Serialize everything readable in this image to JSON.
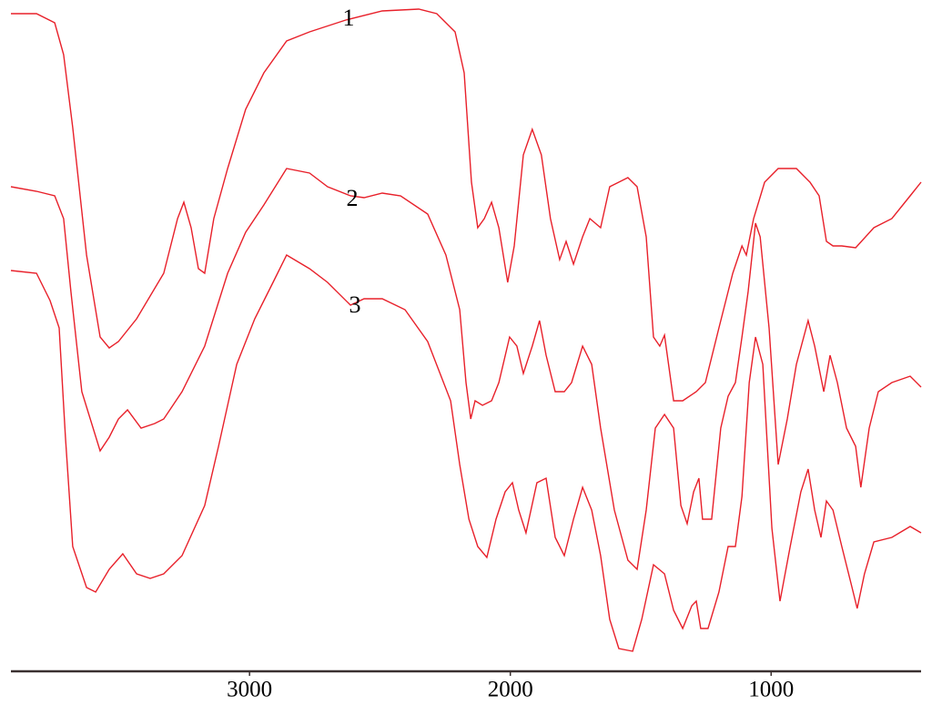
{
  "chart_data": {
    "type": "line",
    "xlim": [
      3915,
      425
    ],
    "ylim": [
      0,
      732
    ],
    "xticks": [
      3000,
      2000,
      1000
    ],
    "grid": false,
    "series": [
      {
        "name": "1",
        "color": "#e8202a",
        "x": [
          3915,
          3817,
          3747,
          3713,
          3678,
          3625,
          3573,
          3538,
          3503,
          3433,
          3329,
          3276,
          3252,
          3224,
          3196,
          3172,
          3137,
          3084,
          3015,
          2945,
          2858,
          2770,
          2631,
          2491,
          2351,
          2282,
          2212,
          2177,
          2149,
          2125,
          2100,
          2072,
          2044,
          2010,
          1985,
          1950,
          1916,
          1881,
          1846,
          1811,
          1786,
          1758,
          1723,
          1695,
          1654,
          1619,
          1584,
          1549,
          1514,
          1479,
          1451,
          1427,
          1409,
          1374,
          1339,
          1287,
          1252,
          1200,
          1147,
          1112,
          1095,
          1067,
          1025,
          973,
          903,
          851,
          816,
          788,
          763,
          729,
          676,
          606,
          537,
          467,
          425
        ],
        "values": [
          722,
          722,
          712,
          677,
          597,
          457,
          367,
          355,
          362,
          387,
          437,
          497,
          515,
          487,
          442,
          437,
          497,
          552,
          617,
          657,
          692,
          702,
          715,
          725,
          727,
          722,
          702,
          657,
          537,
          487,
          497,
          515,
          487,
          427,
          467,
          567,
          595,
          567,
          497,
          452,
          472,
          447,
          477,
          497,
          487,
          532,
          537,
          542,
          532,
          477,
          367,
          357,
          369,
          297,
          297,
          307,
          317,
          377,
          437,
          467,
          457,
          497,
          537,
          552,
          552,
          537,
          522,
          472,
          467,
          467,
          465,
          487,
          497,
          522,
          537
        ]
      },
      {
        "name": "2",
        "color": "#e8202a",
        "x": [
          3915,
          3817,
          3747,
          3713,
          3685,
          3643,
          3573,
          3538,
          3503,
          3468,
          3416,
          3364,
          3329,
          3259,
          3172,
          3084,
          3015,
          2945,
          2858,
          2770,
          2701,
          2613,
          2561,
          2491,
          2421,
          2317,
          2247,
          2194,
          2170,
          2152,
          2135,
          2107,
          2072,
          2044,
          2003,
          1975,
          1950,
          1916,
          1888,
          1863,
          1828,
          1793,
          1765,
          1723,
          1688,
          1654,
          1601,
          1549,
          1514,
          1479,
          1444,
          1409,
          1374,
          1346,
          1322,
          1297,
          1277,
          1263,
          1228,
          1193,
          1165,
          1137,
          1112,
          1088,
          1060,
          1042,
          1008,
          973,
          938,
          903,
          858,
          833,
          798,
          774,
          746,
          711,
          676,
          656,
          624,
          589,
          537,
          467,
          425
        ],
        "values": [
          532,
          527,
          522,
          497,
          417,
          307,
          242,
          257,
          277,
          287,
          267,
          272,
          277,
          307,
          357,
          437,
          482,
          512,
          552,
          547,
          532,
          522,
          520,
          525,
          522,
          502,
          457,
          397,
          317,
          277,
          297,
          292,
          297,
          317,
          367,
          357,
          327,
          357,
          385,
          347,
          307,
          307,
          317,
          357,
          337,
          267,
          177,
          122,
          112,
          177,
          267,
          282,
          267,
          182,
          162,
          197,
          212,
          167,
          167,
          267,
          302,
          317,
          367,
          417,
          492,
          477,
          377,
          227,
          277,
          337,
          385,
          357,
          307,
          347,
          317,
          267,
          247,
          202,
          267,
          307,
          317,
          324,
          312
        ]
      },
      {
        "name": "3",
        "color": "#e8202a",
        "x": [
          3915,
          3817,
          3765,
          3730,
          3706,
          3678,
          3625,
          3590,
          3538,
          3486,
          3433,
          3381,
          3329,
          3259,
          3172,
          3119,
          3049,
          2980,
          2910,
          2858,
          2770,
          2701,
          2613,
          2561,
          2491,
          2404,
          2317,
          2229,
          2194,
          2159,
          2125,
          2090,
          2055,
          2020,
          1992,
          1968,
          1940,
          1898,
          1863,
          1828,
          1793,
          1758,
          1723,
          1688,
          1654,
          1619,
          1584,
          1531,
          1496,
          1451,
          1409,
          1374,
          1339,
          1304,
          1287,
          1270,
          1242,
          1200,
          1165,
          1137,
          1112,
          1084,
          1060,
          1032,
          997,
          966,
          927,
          886,
          858,
          833,
          809,
          788,
          763,
          729,
          694,
          670,
          642,
          606,
          537,
          467,
          425
        ],
        "values": [
          440,
          437,
          407,
          377,
          257,
          137,
          92,
          87,
          112,
          129,
          107,
          102,
          107,
          127,
          182,
          247,
          337,
          387,
          427,
          457,
          442,
          427,
          402,
          409,
          409,
          397,
          362,
          297,
          227,
          167,
          137,
          125,
          167,
          197,
          207,
          177,
          152,
          207,
          212,
          147,
          127,
          167,
          202,
          177,
          127,
          57,
          25,
          22,
          57,
          117,
          107,
          67,
          47,
          72,
          77,
          47,
          47,
          87,
          137,
          137,
          192,
          317,
          367,
          337,
          157,
          77,
          137,
          197,
          222,
          177,
          147,
          187,
          177,
          137,
          97,
          69,
          107,
          142,
          147,
          159,
          152
        ]
      }
    ]
  }
}
